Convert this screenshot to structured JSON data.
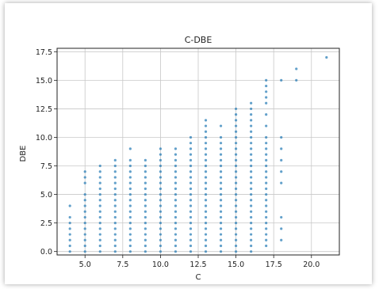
{
  "chart_data": {
    "type": "scatter",
    "title": "C-DBE",
    "xlabel": "C",
    "ylabel": "DBE",
    "xlim": [
      3.15,
      21.85
    ],
    "ylim": [
      -0.3,
      17.8
    ],
    "xticks": [
      5.0,
      7.5,
      10.0,
      12.5,
      15.0,
      17.5,
      20.0
    ],
    "yticks": [
      0.0,
      2.5,
      5.0,
      7.5,
      10.0,
      12.5,
      15.0,
      17.5
    ],
    "grid": true,
    "point_color": "#1f77b4",
    "columns": [
      {
        "x": 4,
        "y": [
          0,
          0.5,
          1,
          1.5,
          2,
          2.5,
          3,
          4
        ]
      },
      {
        "x": 5,
        "y": [
          0,
          0.5,
          1,
          1.5,
          2,
          2.5,
          3,
          3.5,
          4,
          4.5,
          5,
          6,
          6.5,
          7
        ]
      },
      {
        "x": 6,
        "y": [
          0,
          0.5,
          1,
          1.5,
          2,
          2.5,
          3,
          3.5,
          4,
          4.5,
          5,
          5.5,
          6,
          6.5,
          7,
          7.5
        ]
      },
      {
        "x": 7,
        "y": [
          0,
          0.5,
          1,
          1.5,
          2,
          2.5,
          3,
          3.5,
          4,
          4.5,
          5,
          5.5,
          6,
          6.5,
          7,
          7.5,
          8
        ]
      },
      {
        "x": 8,
        "y": [
          0,
          0.5,
          1,
          1.5,
          2,
          2.5,
          3,
          3.5,
          4,
          4.5,
          5,
          5.5,
          6,
          6.5,
          7,
          7.5,
          8,
          9
        ]
      },
      {
        "x": 9,
        "y": [
          0,
          0.5,
          1,
          1.5,
          2,
          2.5,
          3,
          3.5,
          4,
          4.5,
          5,
          5.5,
          6,
          6.5,
          7,
          7.5,
          8
        ]
      },
      {
        "x": 10,
        "y": [
          0,
          0.5,
          1,
          1.5,
          2,
          2.5,
          3,
          3.5,
          4,
          4.5,
          5,
          5.5,
          6,
          6.5,
          7,
          7.5,
          8,
          8.5,
          9
        ]
      },
      {
        "x": 11,
        "y": [
          0,
          0.5,
          1,
          1.5,
          2,
          2.5,
          3,
          3.5,
          4,
          4.5,
          5,
          5.5,
          6,
          6.5,
          7,
          7.5,
          8,
          8.5,
          9
        ]
      },
      {
        "x": 12,
        "y": [
          0,
          0.5,
          1,
          1.5,
          2,
          2.5,
          3,
          3.5,
          4,
          4.5,
          5,
          5.5,
          6,
          6.5,
          7,
          7.5,
          8,
          8.5,
          9,
          9.5,
          10
        ]
      },
      {
        "x": 13,
        "y": [
          0,
          0.5,
          1,
          1.5,
          2,
          2.5,
          3,
          3.5,
          4,
          4.5,
          5,
          5.5,
          6,
          6.5,
          7,
          7.5,
          8,
          8.5,
          9,
          9.5,
          10,
          10.5,
          11,
          11.5
        ]
      },
      {
        "x": 14,
        "y": [
          0,
          0.5,
          1,
          1.5,
          2,
          2.5,
          3,
          3.5,
          4,
          4.5,
          5,
          5.5,
          6,
          6.5,
          7,
          7.5,
          8,
          8.5,
          9,
          9.5,
          10,
          11
        ]
      },
      {
        "x": 15,
        "y": [
          0,
          0.5,
          1,
          1.5,
          2,
          2.5,
          3,
          3.5,
          4,
          4.5,
          5,
          5.5,
          6,
          6.5,
          7,
          7.5,
          8,
          8.5,
          9,
          9.5,
          10,
          10.5,
          11,
          11.5,
          12,
          12.5
        ]
      },
      {
        "x": 16,
        "y": [
          0,
          0.5,
          1,
          1.5,
          2,
          2.5,
          3,
          3.5,
          4,
          4.5,
          5,
          5.5,
          6,
          6.5,
          7,
          7.5,
          8,
          8.5,
          9,
          9.5,
          10,
          10.5,
          11,
          11.5,
          12,
          12.5,
          13
        ]
      },
      {
        "x": 17,
        "y": [
          0.5,
          1,
          1.5,
          2,
          2.5,
          3,
          3.5,
          4,
          4.5,
          5,
          5.5,
          6,
          6.5,
          7,
          7.5,
          8,
          8.5,
          9,
          9.5,
          10,
          11,
          12,
          13,
          13.5,
          14,
          14.5,
          15
        ]
      },
      {
        "x": 18,
        "y": [
          1,
          2,
          3,
          6,
          7,
          8,
          9,
          10,
          15
        ]
      },
      {
        "x": 19,
        "y": [
          15,
          16
        ]
      },
      {
        "x": 21,
        "y": [
          17
        ]
      }
    ]
  }
}
